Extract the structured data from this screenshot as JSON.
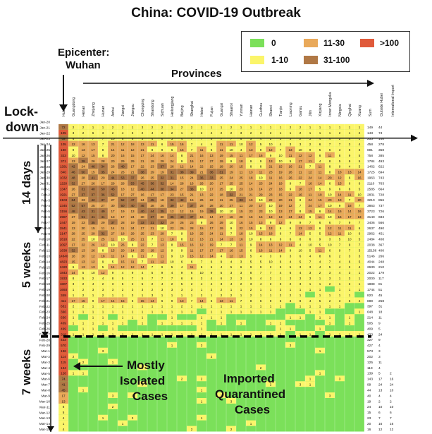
{
  "title": "China: COVID-19 Outbreak",
  "legend": [
    {
      "label": "0",
      "color": "#7be05a"
    },
    {
      "label": "11-30",
      "color": "#e9a95a"
    },
    {
      "label": ">100",
      "color": "#e05a3a"
    },
    {
      "label": "1-10",
      "color": "#fbf56a"
    },
    {
      "label": "31-100",
      "color": "#b07845"
    }
  ],
  "annotations": {
    "epicenter": "Epicenter:",
    "wuhan": "Wuhan",
    "provinces": "Provinces",
    "lock": "Lock-",
    "down": "down",
    "days14": "14 days",
    "weeks5": "5 weeks",
    "weeks7": "7 weeks",
    "isolated1": "Mostly",
    "isolated2": "Isolated",
    "isolated3": "Cases",
    "imported1": "Imported",
    "imported2": "Quarantined",
    "imported3": "Cases"
  },
  "chart_data": {
    "type": "heatmap",
    "title": "China: COVID-19 Outbreak",
    "columns": [
      "Hubei",
      "Guangdong",
      "Henan",
      "Zhejiang",
      "Hunan",
      "Anhui",
      "Jiangxi",
      "Jiangsu",
      "Chongqing",
      "Shandong",
      "Sichuan",
      "Heilongjiang",
      "Beijing",
      "Shanghai",
      "Hebei",
      "Fujian",
      "Guangxi",
      "Shaanxi",
      "Yunnan",
      "Hainan",
      "Guizhou",
      "Shanxi",
      "Tianjin",
      "Liaoning",
      "Gansu",
      "Jilin",
      "Xinjiang",
      "Inner Mongolia",
      "Ningxia",
      "Qinghai",
      "Xizang"
    ],
    "extra_columns": [
      "Sum",
      "Outside Hubei",
      "International Import"
    ],
    "dates": [
      "Jan-20",
      "Jan-21",
      "Jan-22",
      "Jan-23",
      "Jan-24",
      "Jan-25",
      "Jan-26",
      "Jan-27",
      "Jan-28",
      "Jan-29",
      "Jan-30",
      "Jan-31",
      "Feb-1",
      "Feb-2",
      "Feb-3",
      "Feb-4",
      "Feb-5",
      "Feb-6",
      "Feb-7",
      "Feb-8",
      "Feb-9",
      "Feb-10",
      "Feb-11",
      "Feb-12",
      "Feb-13",
      "Feb-14",
      "Feb-15",
      "Feb-16",
      "Feb-17",
      "Feb-18",
      "Feb-19",
      "Feb-20",
      "Feb-21",
      "Feb-22",
      "Feb-23",
      "Feb-24",
      "Feb-25",
      "Feb-26",
      "Feb-27",
      "Feb-28",
      "Feb-29",
      "Mar-1",
      "Mar-2",
      "Mar-3",
      "Mar-4",
      "Mar-5",
      "Mar-6",
      "Mar-7",
      "Mar-8",
      "Mar-9",
      "Mar-10",
      "Mar-11",
      "Mar-12",
      "Mar-13",
      "Mar-14",
      "Mar-15"
    ],
    "hubei": [
      "",
      72,
      105,
      69,
      105,
      180,
      323,
      371,
      1291,
      840,
      1032,
      1220,
      1347,
      1921,
      2103,
      2345,
      3156,
      2987,
      2447,
      2841,
      2147,
      2618,
      2097,
      1638,
      14840,
      4823,
      2420,
      1843,
      1933,
      1807,
      1693,
      349,
      411,
      631,
      366,
      630,
      409,
      499,
      318,
      423,
      570,
      196,
      114,
      115,
      134,
      126,
      74,
      41,
      45,
      17,
      13,
      8,
      5,
      4,
      1,
      4
    ],
    "sum": [
      "",
      149,
      143,
      253,
      458,
      691,
      758,
      1784,
      1462,
      1725,
      1963,
      2110,
      2585,
      2831,
      3210,
      3863,
      3723,
      3140,
      3406,
      2637,
      2962,
      2484,
      2038,
      15156,
      5146,
      4044,
      2630,
      2022,
      2000,
      1888,
      1744,
      820,
      889,
      397,
      648,
      214,
      505,
      409,
      433,
      327,
      427,
      573,
      202,
      125,
      119,
      139,
      143,
      99,
      44,
      40,
      19,
      24,
      15,
      23,
      20,
      16
    ],
    "outside": [
      "",
      44,
      74,
      148,
      278,
      358,
      385,
      493,
      622,
      694,
      743,
      763,
      664,
      728,
      856,
      737,
      726,
      683,
      566,
      490,
      451,
      408,
      367,
      400,
      266,
      248,
      210,
      179,
      117,
      81,
      51,
      45,
      258,
      31,
      18,
      11,
      9,
      5,
      24,
      9,
      4,
      3,
      3,
      11,
      4,
      5,
      17,
      24,
      13,
      4,
      2,
      10,
      6,
      7,
      16,
      12
    ],
    "intl": [
      "",
      "",
      "",
      "",
      "",
      "",
      "",
      "",
      "",
      "",
      "",
      "",
      "",
      "",
      "",
      "",
      "",
      "",
      "",
      "",
      "",
      "",
      "",
      "",
      "",
      "",
      "",
      "",
      "",
      "",
      "",
      "",
      "",
      "",
      "",
      "",
      "",
      "",
      "",
      "",
      "",
      "",
      "",
      "",
      "",
      2,
      16,
      24,
      10,
      4,
      2,
      10,
      6,
      7,
      16,
      12
    ],
    "lockdown_date": "Jan-23",
    "separator_after": "Feb-27"
  }
}
